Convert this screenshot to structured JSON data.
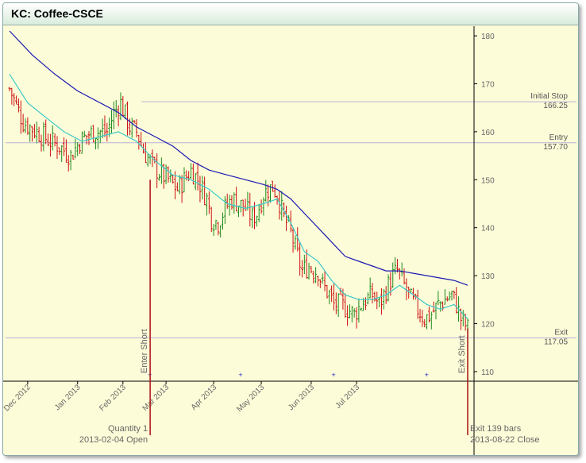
{
  "window": {
    "title": "KC: Coffee-CSCE"
  },
  "chart_data": {
    "type": "bar",
    "subtype": "ohlc",
    "title": "KC: Coffee-CSCE",
    "ylim": [
      108,
      182
    ],
    "y_ticks": [
      110,
      120,
      130,
      140,
      150,
      160,
      170,
      180
    ],
    "x_ticks": [
      "Dec 2012",
      "Jan 2013",
      "Feb 2013",
      "Mar 2013",
      "Apr 2013",
      "May 2013",
      "Jun 2013",
      "Jul 2013"
    ],
    "x_tick_positions": [
      8,
      30,
      50,
      69,
      90,
      111,
      133,
      153
    ],
    "bar_count": 203,
    "close_path": [
      [
        0,
        169
      ],
      [
        6,
        162
      ],
      [
        12,
        160
      ],
      [
        18,
        158
      ],
      [
        22,
        157
      ],
      [
        27,
        155
      ],
      [
        31,
        158
      ],
      [
        35,
        159.5
      ],
      [
        38,
        160
      ],
      [
        43,
        160
      ],
      [
        46,
        164
      ],
      [
        49,
        166
      ],
      [
        53,
        161
      ],
      [
        56,
        160
      ],
      [
        59,
        156
      ],
      [
        63,
        153
      ],
      [
        67,
        151
      ],
      [
        70,
        150
      ],
      [
        74,
        148
      ],
      [
        77,
        150
      ],
      [
        80,
        152
      ],
      [
        83,
        150
      ],
      [
        87,
        146
      ],
      [
        89,
        142
      ],
      [
        92,
        141
      ],
      [
        95,
        144
      ],
      [
        98,
        146
      ],
      [
        101,
        145
      ],
      [
        104,
        144
      ],
      [
        107,
        142
      ],
      [
        109,
        143
      ],
      [
        112,
        147
      ],
      [
        114,
        148
      ],
      [
        116,
        148.5
      ],
      [
        118,
        147
      ],
      [
        121,
        142
      ],
      [
        124,
        139
      ],
      [
        127,
        134
      ],
      [
        129,
        131
      ],
      [
        132,
        132
      ],
      [
        134,
        131
      ],
      [
        136,
        131
      ],
      [
        138,
        128
      ],
      [
        141,
        126
      ],
      [
        143,
        124
      ],
      [
        146,
        124
      ],
      [
        149,
        123
      ],
      [
        152,
        122
      ],
      [
        155,
        124
      ],
      [
        157,
        125
      ],
      [
        160,
        126
      ],
      [
        163,
        124
      ],
      [
        166,
        127
      ],
      [
        169,
        130
      ],
      [
        171,
        131
      ],
      [
        174,
        128
      ],
      [
        177,
        125
      ],
      [
        180,
        123
      ],
      [
        183,
        121
      ],
      [
        186,
        122
      ],
      [
        189,
        124
      ],
      [
        192,
        125
      ],
      [
        195,
        126
      ],
      [
        197,
        124
      ],
      [
        199,
        121
      ],
      [
        202,
        119
      ]
    ],
    "ma_fast_path": [
      [
        0,
        172
      ],
      [
        8,
        166
      ],
      [
        16,
        163
      ],
      [
        24,
        160
      ],
      [
        32,
        158
      ],
      [
        40,
        159
      ],
      [
        48,
        160
      ],
      [
        56,
        158
      ],
      [
        64,
        154
      ],
      [
        72,
        151
      ],
      [
        80,
        150
      ],
      [
        88,
        148
      ],
      [
        96,
        145
      ],
      [
        104,
        144
      ],
      [
        112,
        145
      ],
      [
        118,
        146
      ],
      [
        124,
        141
      ],
      [
        130,
        135
      ],
      [
        136,
        133
      ],
      [
        142,
        129
      ],
      [
        148,
        126
      ],
      [
        154,
        125
      ],
      [
        160,
        125
      ],
      [
        166,
        126
      ],
      [
        172,
        128
      ],
      [
        178,
        126
      ],
      [
        184,
        124
      ],
      [
        190,
        123
      ],
      [
        196,
        124
      ],
      [
        202,
        121
      ]
    ],
    "ma_slow_path": [
      [
        0,
        181
      ],
      [
        10,
        176
      ],
      [
        20,
        172
      ],
      [
        30,
        168.5
      ],
      [
        40,
        166
      ],
      [
        48,
        164
      ],
      [
        56,
        161
      ],
      [
        64,
        159
      ],
      [
        72,
        157
      ],
      [
        80,
        154
      ],
      [
        88,
        152
      ],
      [
        96,
        151
      ],
      [
        104,
        150
      ],
      [
        112,
        149
      ],
      [
        118,
        148
      ],
      [
        124,
        146
      ],
      [
        130,
        143
      ],
      [
        136,
        140
      ],
      [
        142,
        137
      ],
      [
        148,
        134
      ],
      [
        154,
        133
      ],
      [
        160,
        132
      ],
      [
        166,
        131
      ],
      [
        172,
        131
      ],
      [
        178,
        130.5
      ],
      [
        184,
        130
      ],
      [
        190,
        129.5
      ],
      [
        196,
        129
      ],
      [
        202,
        128
      ]
    ],
    "levels": [
      {
        "name": "Initial Stop",
        "value": 166.25,
        "label_value": "166.25"
      },
      {
        "name": "Entry",
        "value": 157.7,
        "label_value": "157.70"
      },
      {
        "name": "Exit",
        "value": 117.05,
        "label_value": "117.05"
      }
    ],
    "trade": {
      "entry_label": "Enter Short",
      "exit_label": "Exit Short",
      "quantity_label": "Quantity 1",
      "bars_label": "Exit 139 bars",
      "entry_date_label": "2013-02-04 Open",
      "exit_date_label": "2013-08-22 Close"
    },
    "markers_bar_index": [
      62,
      102,
      143,
      184
    ],
    "colors": {
      "up": "#1e8a1e",
      "down": "#cc1111",
      "ma_fast": "#3cc8c8",
      "ma_slow": "#1a1ab4",
      "level": "#b8b0d8",
      "marker": "#2222cc",
      "trade": "#aa1111"
    }
  }
}
